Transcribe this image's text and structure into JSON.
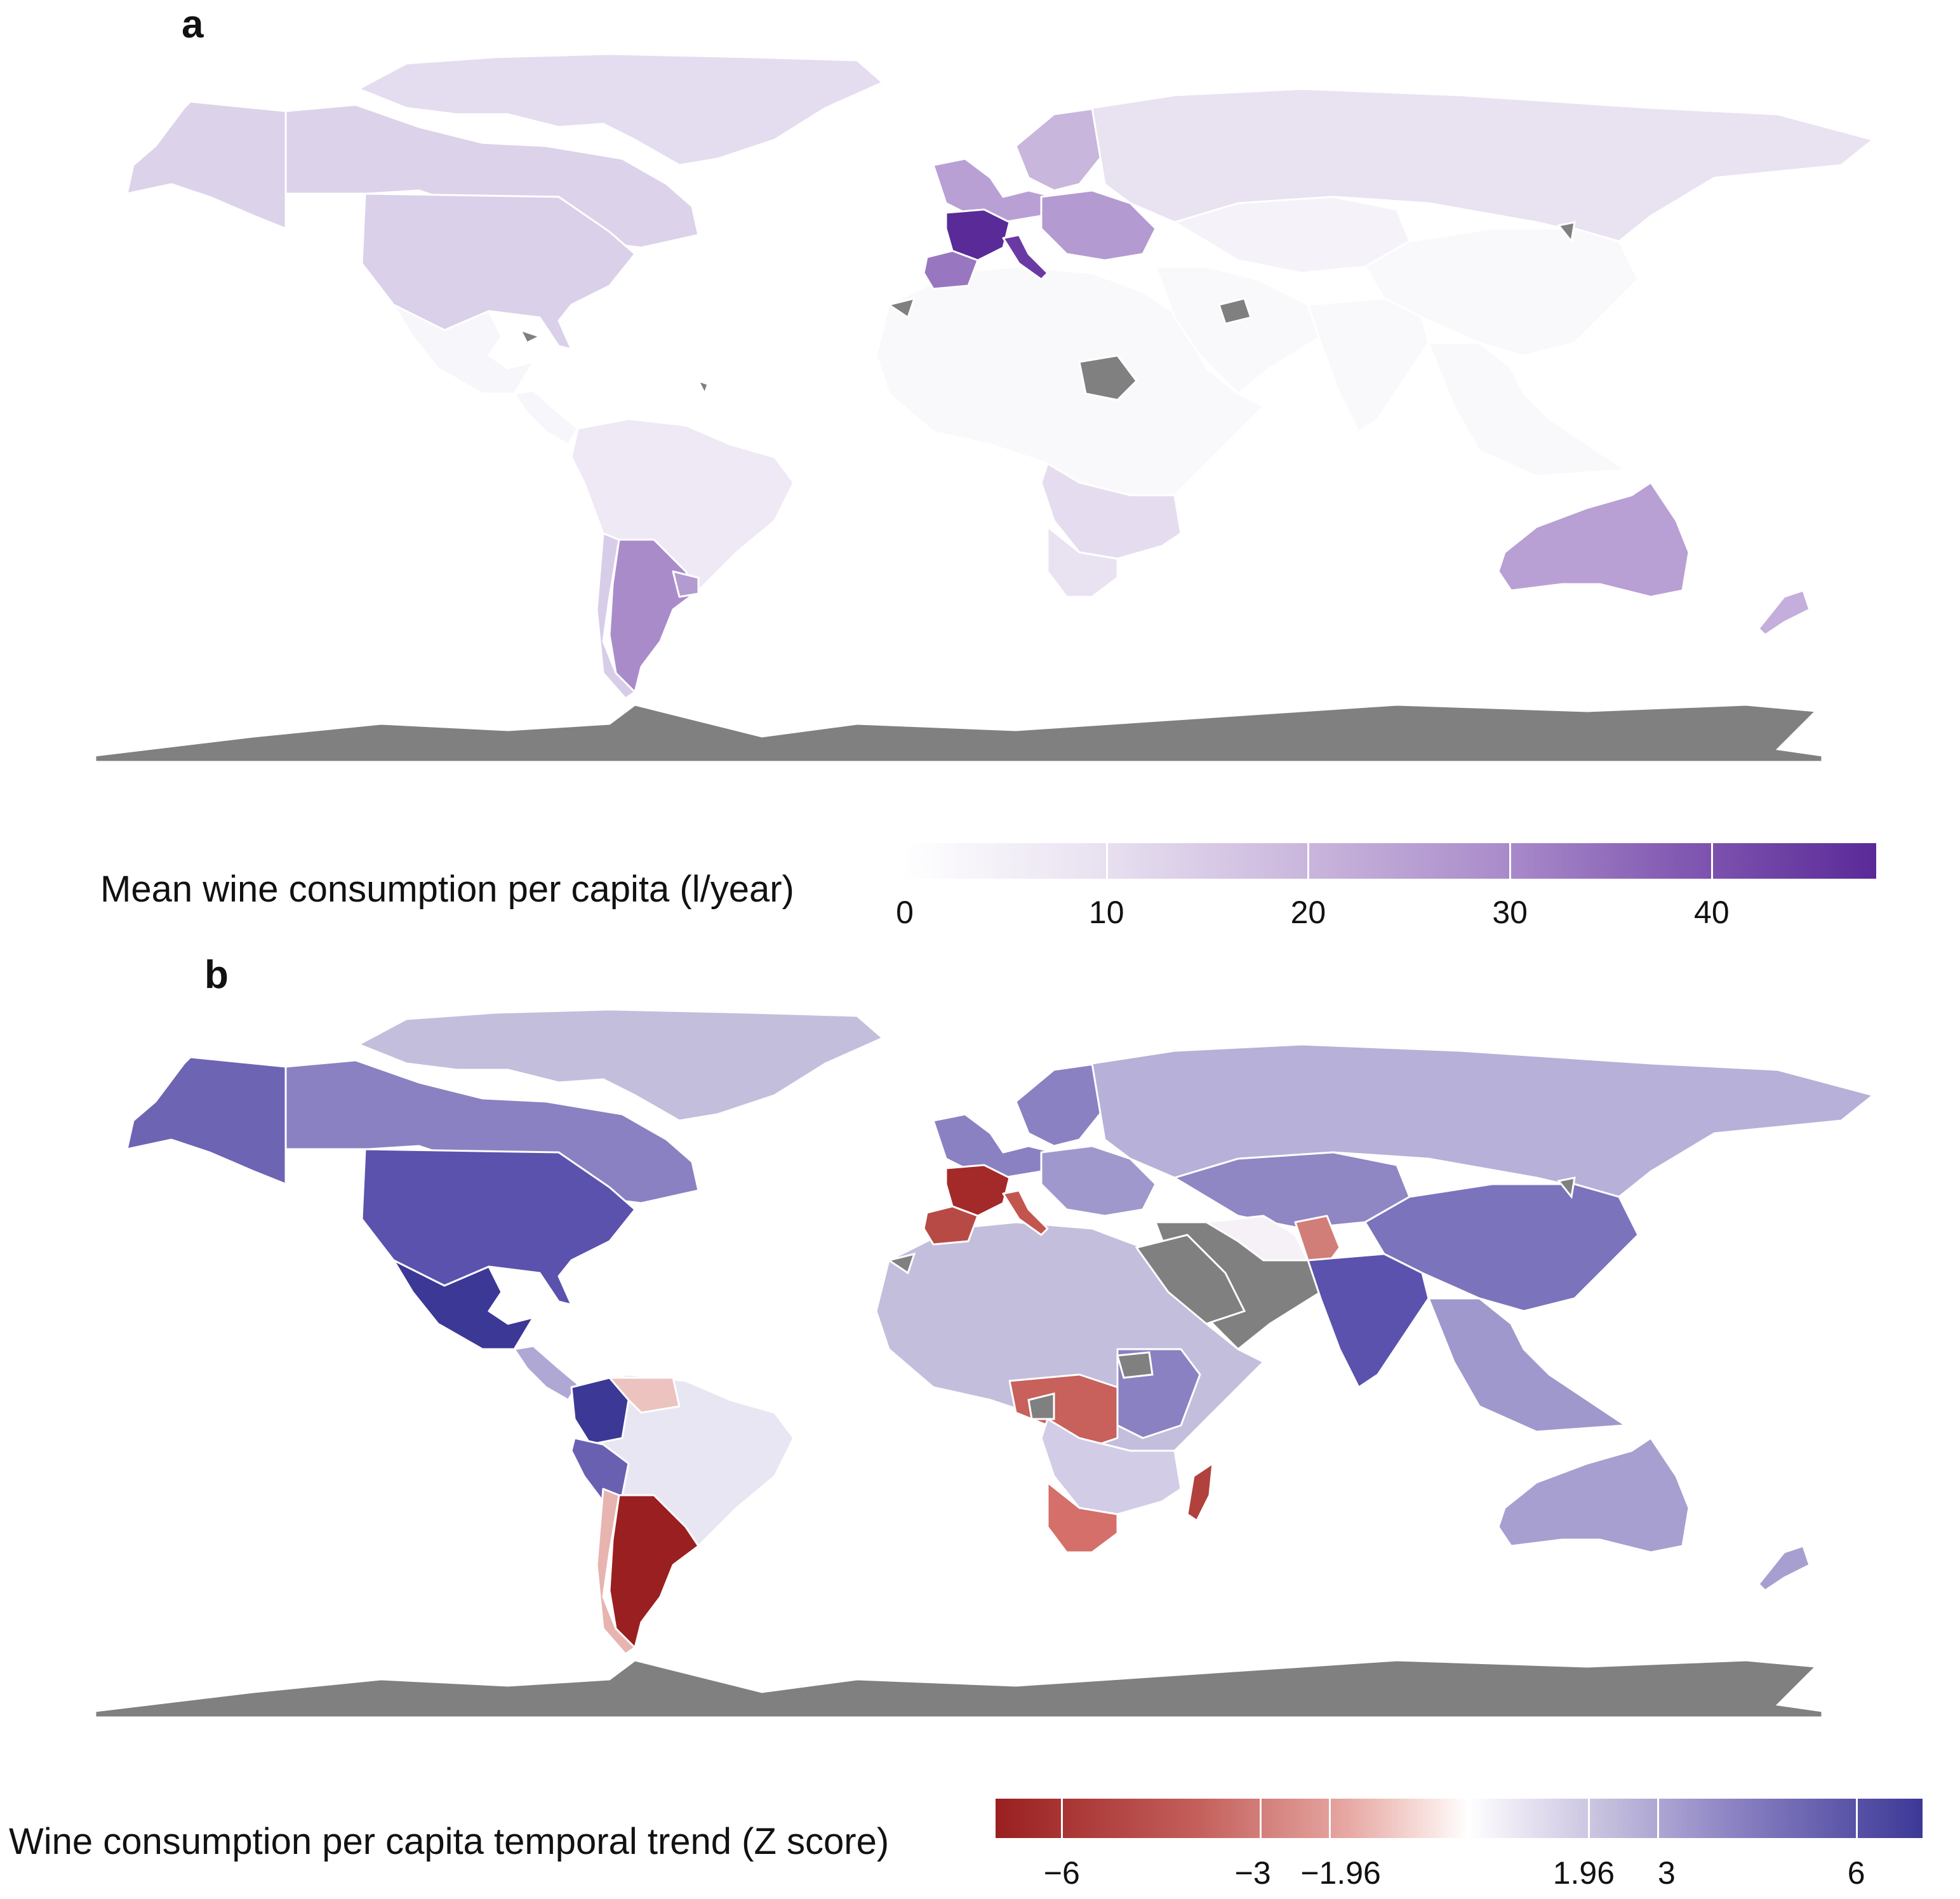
{
  "panels": [
    {
      "label": "a",
      "legend_title": "Mean wine consumption per capita (l/year)",
      "legend_ticks": [
        "0",
        "10",
        "20",
        "30",
        "40"
      ],
      "legend_range": [
        0,
        48
      ]
    },
    {
      "label": "b",
      "legend_title": "Wine consumption per capita temporal trend (Z score)",
      "legend_ticks": [
        "−6",
        "−3",
        "−1.96",
        "1.96",
        "3",
        "6"
      ],
      "legend_range": [
        -7,
        7
      ]
    }
  ],
  "colors": {
    "no_data": "#808080",
    "panel_a_scale": [
      "#ffffff",
      "#e9e2f1",
      "#c9b5dc",
      "#a98bca",
      "#8259b2",
      "#5a2a98"
    ],
    "panel_b_scale": [
      "#9a1f20",
      "#e7a8a3",
      "#ffffff",
      "#c4bedd",
      "#3c3896"
    ]
  },
  "map_a_regions": [
    {
      "name": "greenland",
      "fill": "#e4dcef"
    },
    {
      "name": "canada",
      "fill": "#dcd2ea"
    },
    {
      "name": "alaska",
      "fill": "#dcd2ea"
    },
    {
      "name": "usa",
      "fill": "#dad0e9"
    },
    {
      "name": "mexico",
      "fill": "#f7f6fb"
    },
    {
      "name": "central-america",
      "fill": "#f7f6fb"
    },
    {
      "name": "south-america-north",
      "fill": "#eee9f5"
    },
    {
      "name": "argentina",
      "fill": "#a98bca"
    },
    {
      "name": "chile",
      "fill": "#d8cde8"
    },
    {
      "name": "uruguay",
      "fill": "#b39ad0"
    },
    {
      "name": "africa-north",
      "fill": "#f9f9fb"
    },
    {
      "name": "africa-south",
      "fill": "#e5ddef"
    },
    {
      "name": "south-africa",
      "fill": "#e9e2f1"
    },
    {
      "name": "scandinavia",
      "fill": "#c8b6dd"
    },
    {
      "name": "western-europe",
      "fill": "#b8a0d4"
    },
    {
      "name": "france",
      "fill": "#5a2a98"
    },
    {
      "name": "iberia",
      "fill": "#9877c0"
    },
    {
      "name": "italy",
      "fill": "#6a3aa4"
    },
    {
      "name": "eastern-europe",
      "fill": "#b39ad0"
    },
    {
      "name": "russia",
      "fill": "#e9e2f1"
    },
    {
      "name": "central-asia",
      "fill": "#f5f3f9"
    },
    {
      "name": "middle-east",
      "fill": "#f9f9fb"
    },
    {
      "name": "asia",
      "fill": "#f9f9fb"
    },
    {
      "name": "india",
      "fill": "#f9f9fb"
    },
    {
      "name": "southeast-asia",
      "fill": "#f9f9fb"
    },
    {
      "name": "australia",
      "fill": "#b89fd4"
    },
    {
      "name": "new-zealand",
      "fill": "#c4aedb"
    }
  ],
  "map_b_regions": [
    {
      "name": "greenland",
      "fill": "#c4bedd"
    },
    {
      "name": "canada",
      "fill": "#8a81c2"
    },
    {
      "name": "alaska",
      "fill": "#6e64b4"
    },
    {
      "name": "usa",
      "fill": "#5b52ad"
    },
    {
      "name": "mexico",
      "fill": "#3c3896"
    },
    {
      "name": "central-america",
      "fill": "#b0a8d4"
    },
    {
      "name": "south-america-north",
      "fill": "#e8e6f2"
    },
    {
      "name": "colombia",
      "fill": "#3c3896"
    },
    {
      "name": "venezuela",
      "fill": "#ecc3bf"
    },
    {
      "name": "peru",
      "fill": "#6a60b2"
    },
    {
      "name": "argentina",
      "fill": "#9a1f20"
    },
    {
      "name": "chile",
      "fill": "#e7b4af"
    },
    {
      "name": "africa-north",
      "fill": "#c4bedd"
    },
    {
      "name": "central-africa",
      "fill": "#c8605b"
    },
    {
      "name": "africa-east",
      "fill": "#8a81c2"
    },
    {
      "name": "africa-south",
      "fill": "#d2cce6"
    },
    {
      "name": "south-africa",
      "fill": "#d46f69"
    },
    {
      "name": "madagascar",
      "fill": "#b0413d"
    },
    {
      "name": "scandinavia",
      "fill": "#8a81c2"
    },
    {
      "name": "western-europe",
      "fill": "#8a81c2"
    },
    {
      "name": "france",
      "fill": "#a32a28"
    },
    {
      "name": "iberia",
      "fill": "#b84a45"
    },
    {
      "name": "italy",
      "fill": "#c2564f"
    },
    {
      "name": "eastern-europe",
      "fill": "#9f98cc"
    },
    {
      "name": "russia",
      "fill": "#b7b0d8"
    },
    {
      "name": "central-asia",
      "fill": "#8f86c4"
    },
    {
      "name": "middle-east",
      "fill": "#808080"
    },
    {
      "name": "iran",
      "fill": "#f6f1f6"
    },
    {
      "name": "pakistan",
      "fill": "#d27e78"
    },
    {
      "name": "asia",
      "fill": "#7c73bd"
    },
    {
      "name": "india",
      "fill": "#5b52ad"
    },
    {
      "name": "southeast-asia",
      "fill": "#9f98cc"
    },
    {
      "name": "australia",
      "fill": "#a79fd0"
    },
    {
      "name": "new-zealand",
      "fill": "#a79fd0"
    }
  ]
}
